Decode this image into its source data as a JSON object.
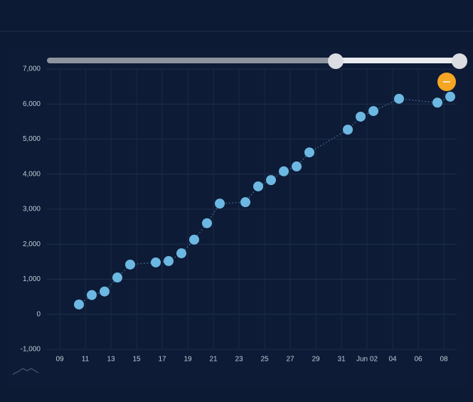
{
  "chart_data": {
    "type": "line",
    "x": [
      2.5,
      3.5,
      4.5,
      5.5,
      6.5,
      8.5,
      9.5,
      10.5,
      11.5,
      12.5,
      13.5,
      15.5,
      16.5,
      17.5,
      18.5,
      19.5,
      20.5,
      23.5,
      24.5,
      25.5,
      27.5,
      30.5,
      31.5
    ],
    "series": [
      {
        "color": "#6cb8e2",
        "values": [
          280,
          550,
          650,
          1050,
          1420,
          1480,
          1520,
          1740,
          2130,
          2600,
          3160,
          3200,
          3650,
          3830,
          4080,
          4220,
          4620,
          5270,
          5640,
          5800,
          6150,
          6040,
          6210
        ]
      }
    ],
    "xlim": [
      0,
      32
    ],
    "xticks": [
      {
        "value": 1,
        "label": "09"
      },
      {
        "value": 3,
        "label": "11"
      },
      {
        "value": 5,
        "label": "13"
      },
      {
        "value": 7,
        "label": "15"
      },
      {
        "value": 9,
        "label": "17"
      },
      {
        "value": 11,
        "label": "19"
      },
      {
        "value": 13,
        "label": "21"
      },
      {
        "value": 15,
        "label": "23"
      },
      {
        "value": 17,
        "label": "25"
      },
      {
        "value": 19,
        "label": "27"
      },
      {
        "value": 21,
        "label": "29"
      },
      {
        "value": 23,
        "label": "31"
      },
      {
        "value": 25,
        "label": "Jun 02"
      },
      {
        "value": 27,
        "label": "04"
      },
      {
        "value": 29,
        "label": "06"
      },
      {
        "value": 31,
        "label": "08"
      }
    ],
    "ylim": [
      -1000,
      7000
    ],
    "yticks": [
      {
        "value": -1000,
        "label": "-1,000"
      },
      0,
      {
        "value": 1000,
        "label": "1,000"
      },
      {
        "value": 2000,
        "label": "2,000"
      },
      {
        "value": 3000,
        "label": "3,000"
      },
      {
        "value": 4000,
        "label": "4,000"
      },
      {
        "value": 5000,
        "label": "5,000"
      },
      {
        "value": 6000,
        "label": "6,000"
      },
      {
        "value": 7000,
        "label": "7,000"
      }
    ],
    "grid": true
  }
}
